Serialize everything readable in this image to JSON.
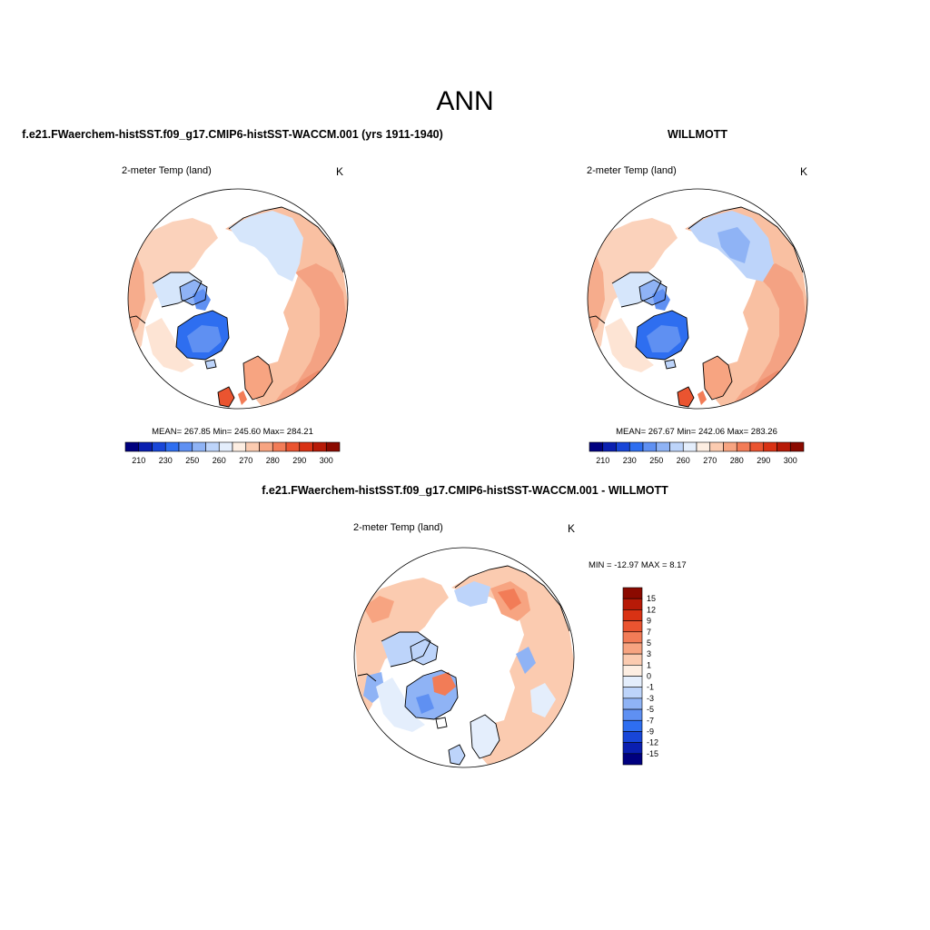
{
  "figure": {
    "title": "ANN"
  },
  "panels": [
    {
      "case_title": "f.e21.FWaerchem-histSST.f09_g17.CMIP6-histSST-WACCM.001 (yrs 1911-1940)",
      "variable": "2-meter Temp (land)",
      "units": "K",
      "stats": "MEAN= 267.85  Min= 245.60  Max= 284.21",
      "colorbar_labels": [
        "210",
        "230",
        "250",
        "260",
        "270",
        "280",
        "290",
        "300"
      ],
      "colorbar_colors": [
        "#00007f",
        "#0a1fb0",
        "#1846d8",
        "#2e6ef0",
        "#5f90f2",
        "#8fb3f5",
        "#bdd4fa",
        "#e4eefc",
        "#fdeee2",
        "#fbcbb0",
        "#f7a481",
        "#f27c57",
        "#ea5430",
        "#d93214",
        "#b71a07",
        "#8b0a00"
      ]
    },
    {
      "case_title": "WILLMOTT",
      "variable": "2-meter Temp (land)",
      "units": "K",
      "stats": "MEAN= 267.67  Min= 242.06  Max= 283.26",
      "colorbar_labels": [
        "210",
        "230",
        "250",
        "260",
        "270",
        "280",
        "290",
        "300"
      ],
      "colorbar_colors": [
        "#00007f",
        "#0a1fb0",
        "#1846d8",
        "#2e6ef0",
        "#5f90f2",
        "#8fb3f5",
        "#bdd4fa",
        "#e4eefc",
        "#fdeee2",
        "#fbcbb0",
        "#f7a481",
        "#f27c57",
        "#ea5430",
        "#d93214",
        "#b71a07",
        "#8b0a00"
      ]
    },
    {
      "case_title": "f.e21.FWaerchem-histSST.f09_g17.CMIP6-histSST-WACCM.001 - WILLMOTT",
      "variable": "2-meter Temp (land)",
      "units": "K",
      "stats": "MIN = -12.97 MAX =   8.17",
      "colorbar_labels": [
        "15",
        "12",
        "9",
        "7",
        "5",
        "3",
        "1",
        "0",
        "-1",
        "-3",
        "-5",
        "-7",
        "-9",
        "-12",
        "-15"
      ],
      "colorbar_colors": [
        "#8b0a00",
        "#b71a07",
        "#d93214",
        "#ea5430",
        "#f27c57",
        "#f7a481",
        "#fbcbb0",
        "#fdeee2",
        "#e4eefc",
        "#bdd4fa",
        "#8fb3f5",
        "#5f90f2",
        "#2e6ef0",
        "#1846d8",
        "#0a1fb0",
        "#00007f"
      ]
    }
  ]
}
